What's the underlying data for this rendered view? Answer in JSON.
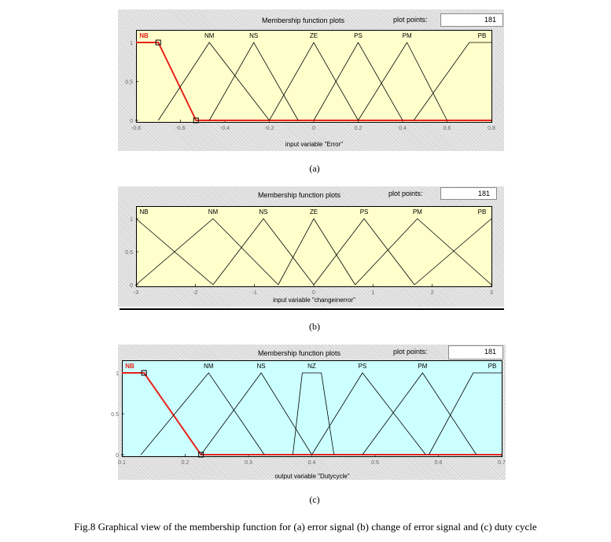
{
  "caption": "Fig.8 Graphical view of the membership function for (a) error signal (b) change of error signal and (c) duty cycle",
  "chart_data": [
    {
      "type": "line",
      "panel_title": "Membership function plots",
      "plot_points_label": "plot points:",
      "plot_points_value": "181",
      "xlabel": "input variable \"Error\"",
      "sublabel": "(a)",
      "xlim": [
        -0.8,
        0.8
      ],
      "ylim": [
        0,
        1
      ],
      "xticks": [
        "-0.8",
        "-0.6",
        "-0.4",
        "-0.2",
        "0",
        "0.2",
        "0.4",
        "0.6",
        "0.8"
      ],
      "xtick_values": [
        -0.8,
        -0.6,
        -0.4,
        -0.2,
        0,
        0.2,
        0.4,
        0.6,
        0.8
      ],
      "yticks": [
        "0",
        "0.5",
        "1"
      ],
      "plot_color": "#ffffcc",
      "selected_color": "#e8221b",
      "series": [
        {
          "name": "NB",
          "x": [
            -0.8,
            -0.7,
            -0.53,
            0.8
          ],
          "y": [
            1,
            1,
            0,
            0
          ],
          "selected": true
        },
        {
          "name": "NM",
          "x": [
            -0.7,
            -0.47,
            -0.2
          ],
          "y": [
            0,
            1,
            0
          ]
        },
        {
          "name": "NS",
          "x": [
            -0.47,
            -0.27,
            -0.07
          ],
          "y": [
            0,
            1,
            0
          ]
        },
        {
          "name": "ZE",
          "x": [
            -0.2,
            0,
            0.2
          ],
          "y": [
            0,
            1,
            0
          ]
        },
        {
          "name": "PS",
          "x": [
            0,
            0.2,
            0.4
          ],
          "y": [
            0,
            1,
            0
          ]
        },
        {
          "name": "PM",
          "x": [
            0.2,
            0.42,
            0.6
          ],
          "y": [
            0,
            1,
            0
          ]
        },
        {
          "name": "PB",
          "x": [
            0.45,
            0.7,
            0.8
          ],
          "y": [
            0,
            1,
            1
          ]
        }
      ]
    },
    {
      "type": "line",
      "panel_title": "Membership function plots",
      "plot_points_label": "plot points:",
      "plot_points_value": "181",
      "xlabel": "input variable \"changeinerror\"",
      "sublabel": "(b)",
      "xlim": [
        -3,
        3
      ],
      "ylim": [
        0,
        1
      ],
      "xticks": [
        "-3",
        "-2",
        "-1",
        "0",
        "1",
        "2",
        "3"
      ],
      "xtick_values": [
        -3,
        -2,
        -1,
        0,
        1,
        2,
        3
      ],
      "yticks": [
        "0",
        "0.5",
        "1"
      ],
      "plot_color": "#ffffcc",
      "selected_color": null,
      "series": [
        {
          "name": "NB",
          "x": [
            -3,
            -1.7
          ],
          "y": [
            1,
            0
          ]
        },
        {
          "name": "NM",
          "x": [
            -3,
            -1.7,
            -0.6
          ],
          "y": [
            0,
            1,
            0
          ]
        },
        {
          "name": "NS",
          "x": [
            -1.7,
            -0.85,
            0
          ],
          "y": [
            0,
            1,
            0
          ]
        },
        {
          "name": "ZE",
          "x": [
            -0.6,
            0,
            0.7
          ],
          "y": [
            0,
            1,
            0
          ]
        },
        {
          "name": "PS",
          "x": [
            0,
            0.85,
            1.7
          ],
          "y": [
            0,
            1,
            0
          ]
        },
        {
          "name": "PM",
          "x": [
            0.7,
            1.75,
            3
          ],
          "y": [
            0,
            1,
            0
          ]
        },
        {
          "name": "PB",
          "x": [
            1.7,
            3
          ],
          "y": [
            0,
            1
          ]
        }
      ]
    },
    {
      "type": "line",
      "panel_title": "Membership function plots",
      "plot_points_label": "plot points:",
      "plot_points_value": "181",
      "xlabel": "output variable \"Dutycycle\"",
      "sublabel": "(c)",
      "xlim": [
        0.1,
        0.7
      ],
      "ylim": [
        0,
        1
      ],
      "xticks": [
        "0.1",
        "0.2",
        "0.3",
        "0.4",
        "0.5",
        "0.6",
        "0.7"
      ],
      "xtick_values": [
        0.1,
        0.2,
        0.3,
        0.4,
        0.5,
        0.6,
        0.7
      ],
      "yticks": [
        "0",
        "0.5",
        "1"
      ],
      "plot_color": "#ccffff",
      "selected_color": "#e8221b",
      "series": [
        {
          "name": "NB",
          "x": [
            0.1,
            0.135,
            0.225,
            0.7
          ],
          "y": [
            1,
            1,
            0,
            0
          ],
          "selected": true
        },
        {
          "name": "NM",
          "x": [
            0.13,
            0.237,
            0.325
          ],
          "y": [
            0,
            1,
            0
          ]
        },
        {
          "name": "NS",
          "x": [
            0.225,
            0.32,
            0.4
          ],
          "y": [
            0,
            1,
            0
          ]
        },
        {
          "name": "NZ",
          "x": [
            0.37,
            0.385,
            0.415,
            0.435
          ],
          "y": [
            0,
            1,
            1,
            0
          ]
        },
        {
          "name": "PS",
          "x": [
            0.4,
            0.48,
            0.58
          ],
          "y": [
            0,
            1,
            0
          ]
        },
        {
          "name": "PM",
          "x": [
            0.48,
            0.575,
            0.66
          ],
          "y": [
            0,
            1,
            0
          ]
        },
        {
          "name": "PB",
          "x": [
            0.585,
            0.655,
            0.7
          ],
          "y": [
            0,
            1,
            1
          ]
        }
      ]
    }
  ]
}
